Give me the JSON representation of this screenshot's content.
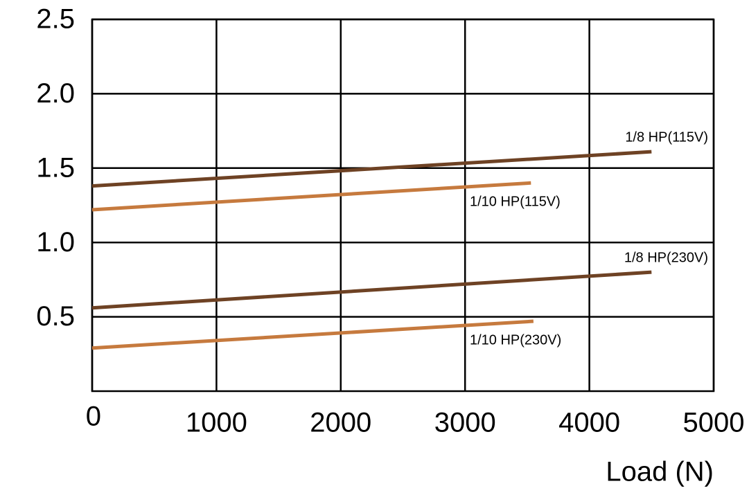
{
  "chart_data": {
    "type": "line",
    "x_label": "Load (N)",
    "xlim": [
      0,
      5000
    ],
    "xticks": [
      0,
      1000,
      2000,
      3000,
      4000,
      5000
    ],
    "ylim": [
      0,
      2.5
    ],
    "yticks": [
      {
        "value": 0.5,
        "label": "0.5"
      },
      {
        "value": 1,
        "label": "1.0"
      },
      {
        "value": 1.5,
        "label": "1.5"
      },
      {
        "value": 2,
        "label": "2.0"
      },
      {
        "value": 2.5,
        "label": "2.5"
      }
    ],
    "grid": true,
    "series": [
      {
        "name": "1/8 HP(115V)",
        "color": "#6e4224",
        "x": [
          0,
          4500
        ],
        "values": [
          1.38,
          1.61
        ]
      },
      {
        "name": "1/10 HP(115V)",
        "color": "#c67a3e",
        "x": [
          0,
          3530
        ],
        "values": [
          1.22,
          1.4
        ]
      },
      {
        "name": "1/8 HP(230V)",
        "color": "#6e4224",
        "x": [
          0,
          4500
        ],
        "values": [
          0.56,
          0.8
        ]
      },
      {
        "name": "1/10 HP(230V)",
        "color": "#c67a3e",
        "x": [
          0,
          3550
        ],
        "values": [
          0.29,
          0.47
        ]
      }
    ]
  }
}
